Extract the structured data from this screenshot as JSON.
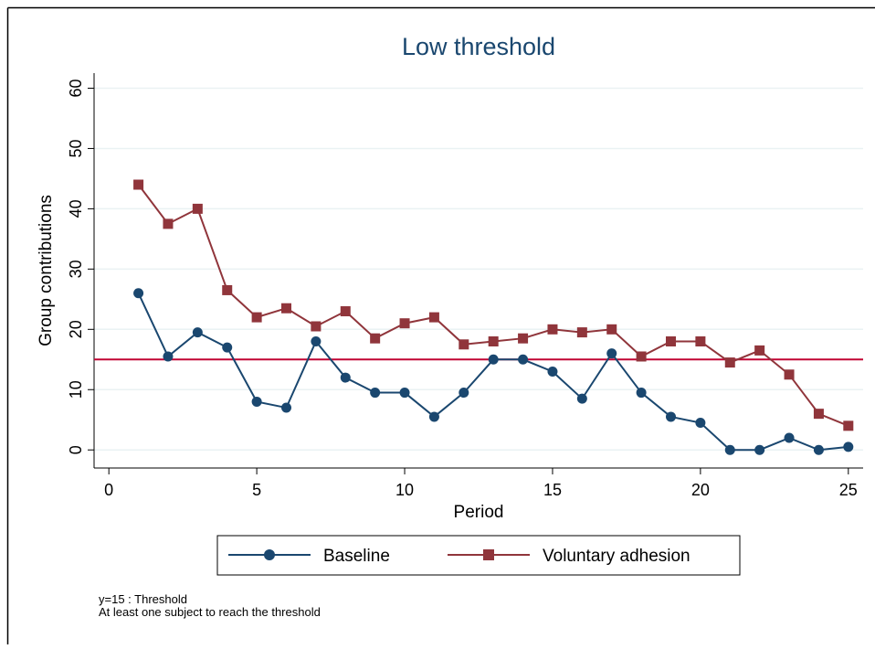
{
  "chart_data": {
    "type": "line",
    "title": "Low threshold",
    "x_label": "Period",
    "y_label": "Group contributions",
    "x": [
      1,
      2,
      3,
      4,
      5,
      6,
      7,
      8,
      9,
      10,
      11,
      12,
      13,
      14,
      15,
      16,
      17,
      18,
      19,
      20,
      21,
      22,
      23,
      24,
      25
    ],
    "series": [
      {
        "name": "Baseline",
        "color": "#1a476f",
        "marker": "circle",
        "values": [
          26,
          15.5,
          19.5,
          17,
          8,
          7,
          18,
          12,
          9.5,
          9.5,
          5.5,
          9.5,
          15,
          15,
          13,
          8.5,
          16,
          9.5,
          5.5,
          4.5,
          0,
          0,
          2,
          0,
          0.5
        ]
      },
      {
        "name": "Voluntary adhesion",
        "color": "#90353b",
        "marker": "square",
        "values": [
          44,
          37.5,
          40,
          26.5,
          22,
          23.5,
          20.5,
          23,
          18.5,
          21,
          22,
          17.5,
          18,
          18.5,
          20,
          19.5,
          20,
          15.5,
          18,
          18,
          14.5,
          16.5,
          12.5,
          6,
          4
        ]
      }
    ],
    "reference_line": {
      "value": 15,
      "color": "#c10534"
    },
    "notes": [
      "y=15 : Threshold",
      "At least one subject to reach the threshold"
    ],
    "xlim": [
      -0.5,
      25.5
    ],
    "xticks": [
      0,
      5,
      10,
      15,
      20,
      25
    ],
    "ylim": [
      -3,
      62.5
    ],
    "yticks": [
      0,
      10,
      20,
      30,
      40,
      50,
      60
    ],
    "grid": true,
    "legend_position": "bottom"
  }
}
